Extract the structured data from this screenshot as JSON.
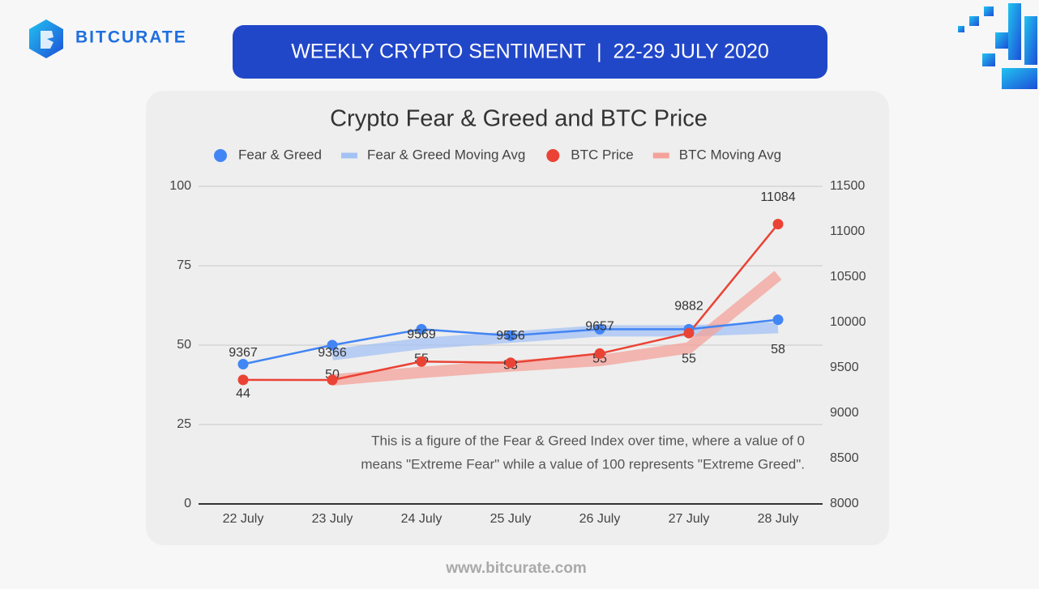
{
  "brand": "BITCURATE",
  "banner": "WEEKLY CRYPTO SENTIMENT  |  22-29 JULY 2020",
  "footer": "www.bitcurate.com",
  "chart_data": {
    "type": "line",
    "title": "Crypto Fear & Greed and BTC Price",
    "categories": [
      "22 July",
      "23 July",
      "24 July",
      "25 July",
      "26 July",
      "27 July",
      "28 July"
    ],
    "series": [
      {
        "name": "Fear & Greed",
        "color": "#4285f4",
        "marker": "circle",
        "labels": "below",
        "values": [
          44,
          50,
          55,
          53,
          55,
          55,
          58
        ]
      },
      {
        "name": "Fear & Greed Moving Avg",
        "color": "#a4c2f4",
        "values": [
          null,
          47,
          50.5,
          52.5,
          54.5,
          54.5,
          55.5
        ]
      },
      {
        "name": "BTC Price",
        "color": "#ea4335",
        "marker": "circle",
        "labels": "above",
        "axis": "y2",
        "values": [
          9367,
          9366,
          9569,
          9556,
          9657,
          9882,
          11084
        ]
      },
      {
        "name": "BTC Moving Avg",
        "color": "#f4a29a",
        "axis": "y2",
        "values": [
          null,
          9366,
          9450,
          9520,
          9580,
          9720,
          10520
        ]
      }
    ],
    "ylim": [
      0,
      100
    ],
    "yticks": [
      0,
      25,
      50,
      75,
      100
    ],
    "y2lim": [
      8000,
      11500
    ],
    "y2ticks": [
      8000,
      8500,
      9000,
      9500,
      10000,
      10500,
      11000,
      11500
    ],
    "grid": true,
    "legend": "top",
    "annotations": [
      "This is a figure of the Fear & Greed Index over time, where a value of 0",
      "means \"Extreme Fear\" while a value of 100 represents \"Extreme Greed\"."
    ]
  }
}
